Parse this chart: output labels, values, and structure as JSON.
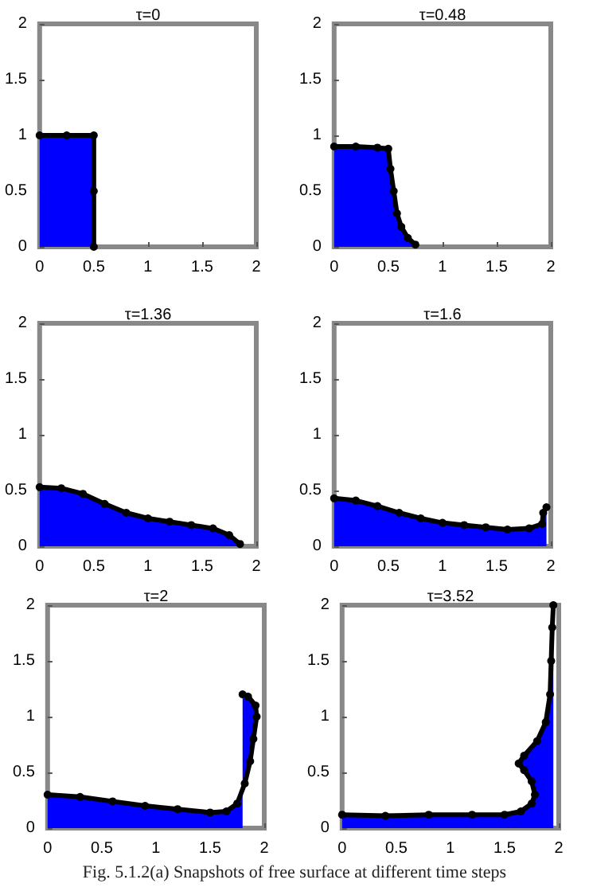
{
  "chart_data": [
    {
      "type": "area",
      "title": "τ=0",
      "xlim": [
        0,
        2
      ],
      "ylim": [
        0,
        2
      ],
      "xticks": [
        0,
        0.5,
        1,
        1.5,
        2
      ],
      "yticks": [
        0,
        0.5,
        1,
        1.5,
        2
      ],
      "marker": "circle",
      "line_style": "solid",
      "series": [
        {
          "color": "#0000ff",
          "x": [
            0,
            0.25,
            0.5,
            0.5,
            0.5
          ],
          "values": [
            1,
            1,
            1,
            0.5,
            0
          ]
        }
      ]
    },
    {
      "type": "area",
      "title": "τ=0.48",
      "xlim": [
        0,
        2
      ],
      "ylim": [
        0,
        2
      ],
      "xticks": [
        0,
        0.5,
        1,
        1.5,
        2
      ],
      "yticks": [
        0,
        0.5,
        1,
        1.5,
        2
      ],
      "marker": "circle",
      "line_style": "solid",
      "series": [
        {
          "color": "#0000ff",
          "x": [
            0,
            0.2,
            0.4,
            0.5,
            0.52,
            0.55,
            0.58,
            0.62,
            0.68,
            0.75
          ],
          "values": [
            0.9,
            0.9,
            0.89,
            0.88,
            0.7,
            0.5,
            0.3,
            0.18,
            0.08,
            0.02
          ]
        }
      ]
    },
    {
      "type": "area",
      "title": "τ=1.36",
      "xlim": [
        0,
        2
      ],
      "ylim": [
        0,
        2
      ],
      "xticks": [
        0,
        0.5,
        1,
        1.5,
        2
      ],
      "yticks": [
        0,
        0.5,
        1,
        1.5,
        2
      ],
      "marker": "circle",
      "line_style": "solid",
      "series": [
        {
          "color": "#0000ff",
          "x": [
            0,
            0.2,
            0.4,
            0.6,
            0.8,
            1.0,
            1.2,
            1.4,
            1.6,
            1.75,
            1.85
          ],
          "values": [
            0.53,
            0.52,
            0.47,
            0.38,
            0.3,
            0.25,
            0.22,
            0.19,
            0.16,
            0.1,
            0.02
          ]
        }
      ]
    },
    {
      "type": "area",
      "title": "τ=1.6",
      "xlim": [
        0,
        2
      ],
      "ylim": [
        0,
        2
      ],
      "xticks": [
        0,
        0.5,
        1,
        1.5,
        2
      ],
      "yticks": [
        0,
        0.5,
        1,
        1.5,
        2
      ],
      "marker": "circle",
      "line_style": "solid",
      "series": [
        {
          "color": "#0000ff",
          "x": [
            0,
            0.2,
            0.4,
            0.6,
            0.8,
            1.0,
            1.2,
            1.4,
            1.6,
            1.8,
            1.92,
            1.93,
            1.96
          ],
          "values": [
            0.43,
            0.41,
            0.36,
            0.3,
            0.25,
            0.21,
            0.19,
            0.17,
            0.15,
            0.16,
            0.2,
            0.3,
            0.35
          ]
        }
      ]
    },
    {
      "type": "area",
      "title": "τ=2",
      "xlim": [
        0,
        2
      ],
      "ylim": [
        0,
        2
      ],
      "xticks": [
        0,
        0.5,
        1,
        1.5,
        2
      ],
      "yticks": [
        0,
        0.5,
        1,
        1.5,
        2
      ],
      "marker": "circle",
      "line_style": "solid",
      "series": [
        {
          "color": "#0000ff",
          "x": [
            0,
            0.3,
            0.6,
            0.9,
            1.2,
            1.5,
            1.65,
            1.75,
            1.82,
            1.87,
            1.9,
            1.93,
            1.92,
            1.85,
            1.8
          ],
          "values": [
            0.3,
            0.28,
            0.24,
            0.2,
            0.17,
            0.14,
            0.15,
            0.22,
            0.4,
            0.6,
            0.8,
            1.0,
            1.1,
            1.18,
            1.2
          ]
        }
      ]
    },
    {
      "type": "area",
      "title": "τ=3.52",
      "xlim": [
        0,
        2
      ],
      "ylim": [
        0,
        2
      ],
      "xticks": [
        0,
        0.5,
        1,
        1.5,
        2
      ],
      "yticks": [
        0,
        0.5,
        1,
        1.5,
        2
      ],
      "marker": "circle",
      "line_style": "solid",
      "annotations": [
        "Fig. 5.1.2(a) Snapshots of free surface at different time steps"
      ],
      "series": [
        {
          "color": "#0000ff",
          "x": [
            0,
            0.4,
            0.8,
            1.2,
            1.5,
            1.65,
            1.75,
            1.78,
            1.75,
            1.68,
            1.63,
            1.68,
            1.8,
            1.88,
            1.92,
            1.93,
            1.94,
            1.95
          ],
          "values": [
            0.12,
            0.11,
            0.12,
            0.12,
            0.12,
            0.15,
            0.22,
            0.3,
            0.42,
            0.52,
            0.58,
            0.65,
            0.78,
            0.95,
            1.2,
            1.5,
            1.8,
            2.0
          ]
        }
      ]
    }
  ]
}
